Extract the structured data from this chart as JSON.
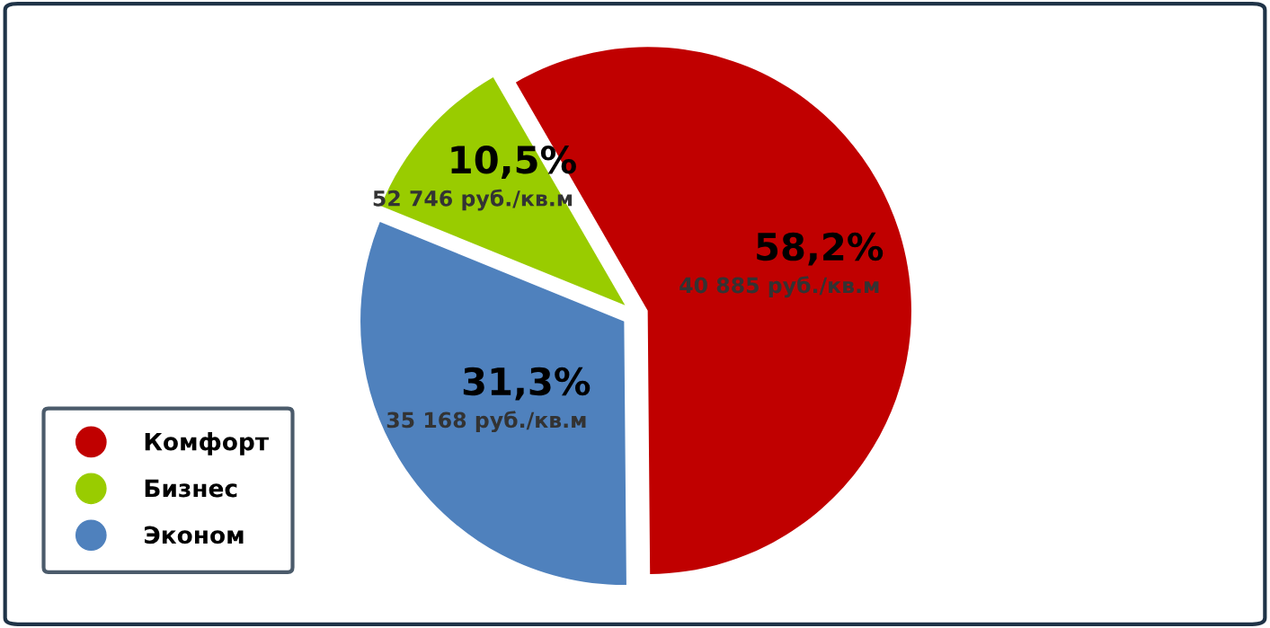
{
  "chart_data": {
    "type": "pie",
    "categories": [
      "Комфорт",
      "Бизнес",
      "Эконом"
    ],
    "values": [
      58.2,
      10.5,
      31.3
    ],
    "colors": [
      "#c00000",
      "#99cc00",
      "#4f81bd"
    ],
    "value_labels": [
      "58,2%",
      "10,5%",
      "31,3%"
    ],
    "annotations": [
      "40 885 руб./кв.м",
      "52 746 руб./кв.м",
      "35 168 руб./кв.м"
    ],
    "legend": "bottom left"
  }
}
